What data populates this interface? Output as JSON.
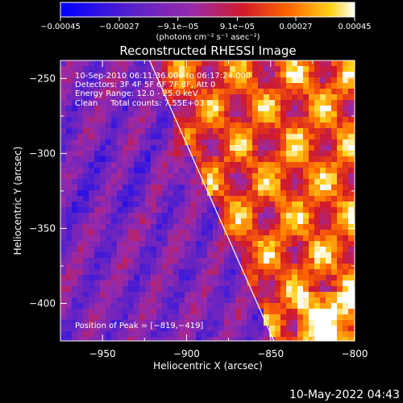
{
  "chart_data": {
    "type": "heatmap",
    "title": "Reconstructed RHESSI Image",
    "xlabel": "Heliocentric X (arcsec)",
    "ylabel": "Heliocentric Y (arcsec)",
    "xlim": [
      -975,
      -800
    ],
    "ylim": [
      -425,
      -238
    ],
    "x_ticks": [
      -950,
      -900,
      -850,
      -800
    ],
    "y_ticks": [
      -250,
      -300,
      -350,
      -400
    ],
    "x_tick_labels": [
      "−950",
      "−900",
      "−850",
      "−800"
    ],
    "y_tick_labels": [
      "−250",
      "−300",
      "−350",
      "−400"
    ],
    "colorbar": {
      "min": -0.00045,
      "max": 0.00045,
      "tick_values": [
        -0.00045,
        -0.00027,
        -9.1e-05,
        9.1e-05,
        0.00027,
        0.00045
      ],
      "tick_labels": [
        "−0.00045",
        "−0.00027",
        "−9.1e−05",
        "9.1e−05",
        "0.00027",
        "0.00045"
      ],
      "unit_label": "(photons cm⁻² s⁻¹ asec⁻²)",
      "colormap": [
        "#0000ff",
        "#5a22c8",
        "#9a2aa8",
        "#d11a2a",
        "#ff6a00",
        "#ffd21a",
        "#ffffff"
      ]
    },
    "limb_line": {
      "from": [
        -922,
        -238
      ],
      "to": [
        -848,
        -425
      ]
    },
    "peak": {
      "x": -819,
      "y": -419
    },
    "annotations": [
      "10-Sep-2010 06:11:36.000 to 06:17:24.000",
      "Detectors: 3F 4F 5F 6F 7F 8F, Att 0",
      "Energy Range: 12.0 - 25.0 keV",
      "Clean     Total counts: 7.55E+03"
    ],
    "peak_label": "Position of Peak = [−819,−419]",
    "grid": false,
    "legend": "none"
  },
  "footer": {
    "timestamp": "10-May-2022 04:43"
  }
}
